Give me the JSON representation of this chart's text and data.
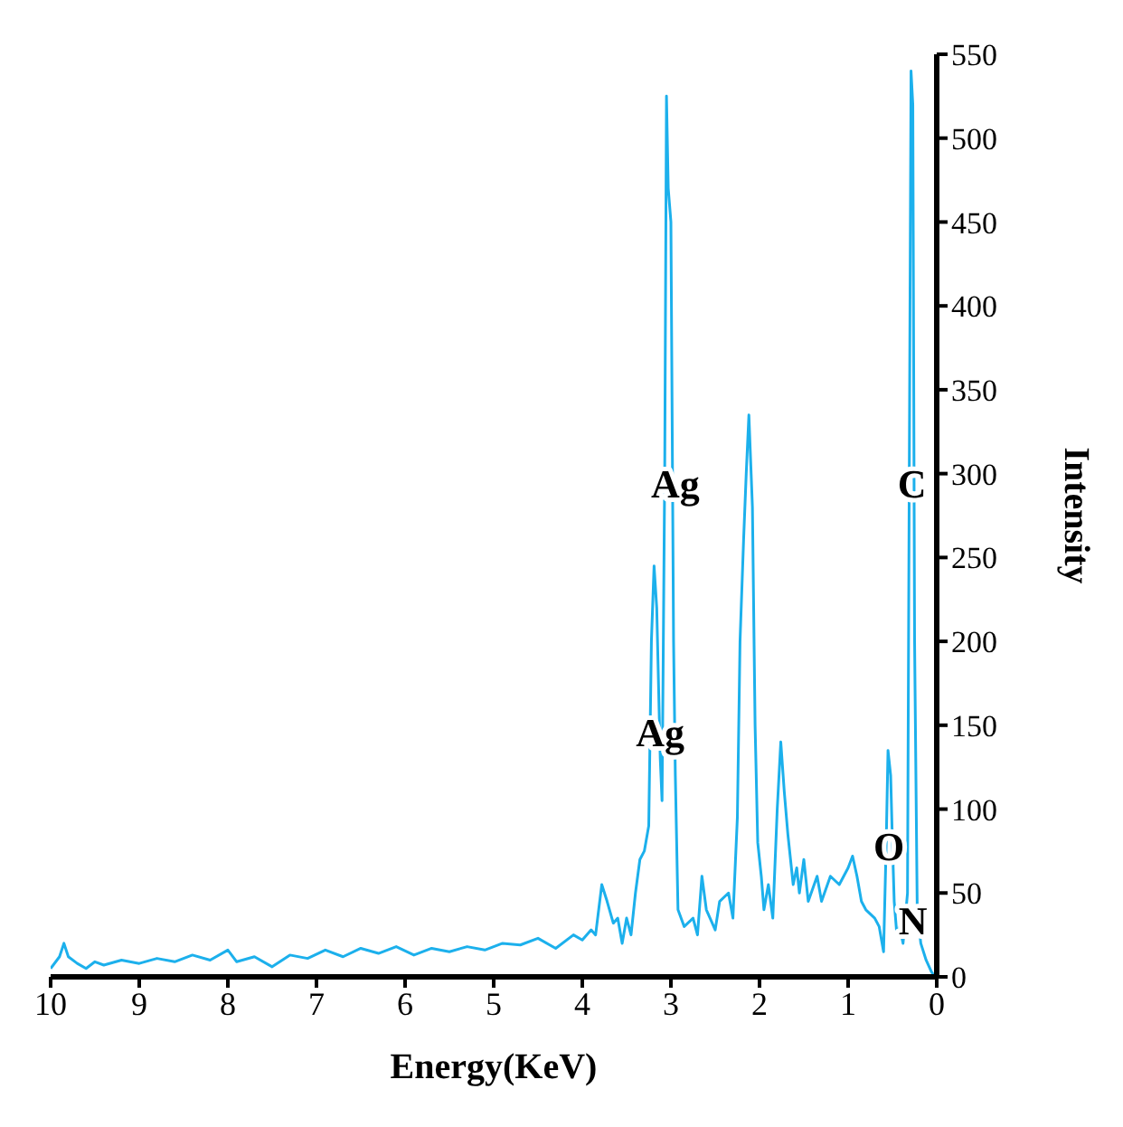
{
  "chart_data": {
    "type": "line",
    "xlabel": "Energy(KeV)",
    "ylabel": "Intensity",
    "xlim": [
      10,
      0
    ],
    "xticks": [
      10,
      9,
      8,
      7,
      6,
      5,
      4,
      3,
      2,
      1,
      0
    ],
    "ylim": [
      0,
      550
    ],
    "yticks": [
      0,
      50,
      100,
      150,
      200,
      250,
      300,
      350,
      400,
      450,
      500,
      550
    ],
    "grid": false,
    "marker": "none",
    "line_style": "solid",
    "annotations": [
      {
        "text": "Ag",
        "x": 2.95,
        "y": 291
      },
      {
        "text": "Ag",
        "x": 3.12,
        "y": 143
      },
      {
        "text": "C",
        "x": 0.28,
        "y": 291
      },
      {
        "text": "O",
        "x": 0.54,
        "y": 75
      },
      {
        "text": "N",
        "x": 0.27,
        "y": 31
      }
    ],
    "series": [
      {
        "color": "#1cb0ec",
        "x": [
          10,
          9.9,
          9.85,
          9.8,
          9.7,
          9.6,
          9.5,
          9.4,
          9.2,
          9.0,
          8.8,
          8.6,
          8.4,
          8.2,
          8.0,
          7.9,
          7.7,
          7.5,
          7.3,
          7.1,
          6.9,
          6.7,
          6.5,
          6.3,
          6.1,
          5.9,
          5.7,
          5.5,
          5.3,
          5.1,
          4.9,
          4.7,
          4.5,
          4.3,
          4.1,
          4.0,
          3.9,
          3.85,
          3.78,
          3.72,
          3.65,
          3.6,
          3.55,
          3.5,
          3.45,
          3.4,
          3.35,
          3.3,
          3.25,
          3.22,
          3.19,
          3.16,
          3.12,
          3.1,
          3.07,
          3.05,
          3.03,
          3.0,
          2.97,
          2.95,
          2.92,
          2.85,
          2.75,
          2.7,
          2.65,
          2.6,
          2.5,
          2.45,
          2.35,
          2.3,
          2.25,
          2.22,
          2.18,
          2.15,
          2.12,
          2.08,
          2.05,
          2.02,
          1.98,
          1.95,
          1.9,
          1.85,
          1.8,
          1.76,
          1.72,
          1.68,
          1.62,
          1.58,
          1.55,
          1.5,
          1.45,
          1.35,
          1.3,
          1.2,
          1.1,
          1.0,
          0.95,
          0.9,
          0.85,
          0.8,
          0.7,
          0.65,
          0.6,
          0.57,
          0.55,
          0.52,
          0.5,
          0.48,
          0.45,
          0.42,
          0.38,
          0.33,
          0.31,
          0.29,
          0.27,
          0.25,
          0.22,
          0.18,
          0.12,
          0.06,
          0.02
        ],
        "values": [
          5,
          12,
          20,
          12,
          8,
          5,
          9,
          7,
          10,
          8,
          11,
          9,
          13,
          10,
          16,
          9,
          12,
          6,
          13,
          11,
          16,
          12,
          17,
          14,
          18,
          13,
          17,
          15,
          18,
          16,
          20,
          19,
          23,
          17,
          25,
          22,
          28,
          25,
          55,
          45,
          32,
          35,
          20,
          35,
          25,
          50,
          70,
          75,
          90,
          200,
          245,
          220,
          130,
          105,
          300,
          525,
          470,
          450,
          200,
          120,
          40,
          30,
          35,
          25,
          60,
          40,
          28,
          45,
          50,
          35,
          95,
          200,
          260,
          300,
          335,
          280,
          150,
          80,
          60,
          40,
          55,
          35,
          100,
          140,
          110,
          85,
          55,
          65,
          50,
          70,
          45,
          60,
          45,
          60,
          55,
          65,
          72,
          60,
          45,
          40,
          35,
          30,
          15,
          80,
          135,
          120,
          80,
          45,
          25,
          30,
          20,
          50,
          300,
          540,
          520,
          200,
          40,
          20,
          10,
          3,
          0
        ]
      }
    ]
  }
}
